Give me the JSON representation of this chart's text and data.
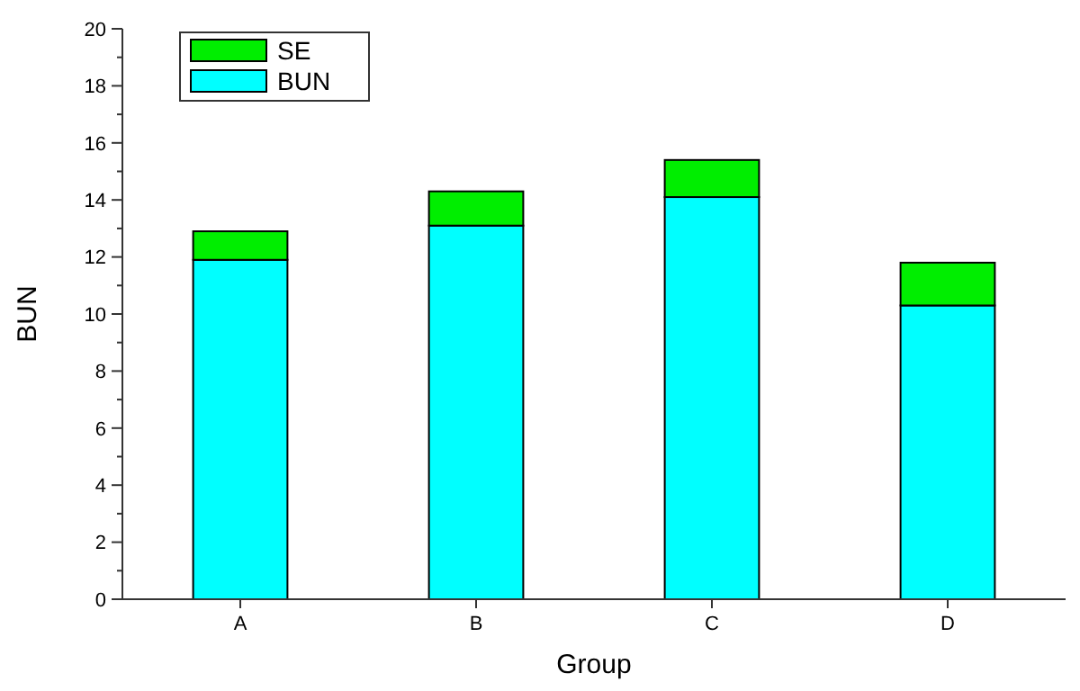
{
  "chart_data": {
    "type": "bar",
    "stacked": true,
    "xlabel": "Group",
    "ylabel": "BUN",
    "categories": [
      "A",
      "B",
      "C",
      "D"
    ],
    "series": [
      {
        "name": "BUN",
        "color": "#00ffff",
        "values": [
          11.9,
          13.1,
          14.1,
          10.3
        ]
      },
      {
        "name": "SE",
        "color": "#00ee00",
        "values": [
          1.0,
          1.2,
          1.3,
          1.5
        ]
      }
    ],
    "ylim": [
      0,
      20
    ],
    "yticks": [
      0,
      {
        "value": 1,
        "label": null
      },
      2,
      {
        "value": 3,
        "label": null
      },
      4,
      {
        "value": 5,
        "label": null
      },
      6,
      {
        "value": 7,
        "label": null
      },
      8,
      {
        "value": 9,
        "label": null
      },
      10,
      {
        "value": 11,
        "label": null
      },
      12,
      {
        "value": 13,
        "label": null
      },
      14,
      {
        "value": 15,
        "label": null
      },
      16,
      {
        "value": 17,
        "label": null
      },
      18,
      {
        "value": 19,
        "label": null
      },
      20
    ],
    "legend": "top left",
    "grid": false
  }
}
